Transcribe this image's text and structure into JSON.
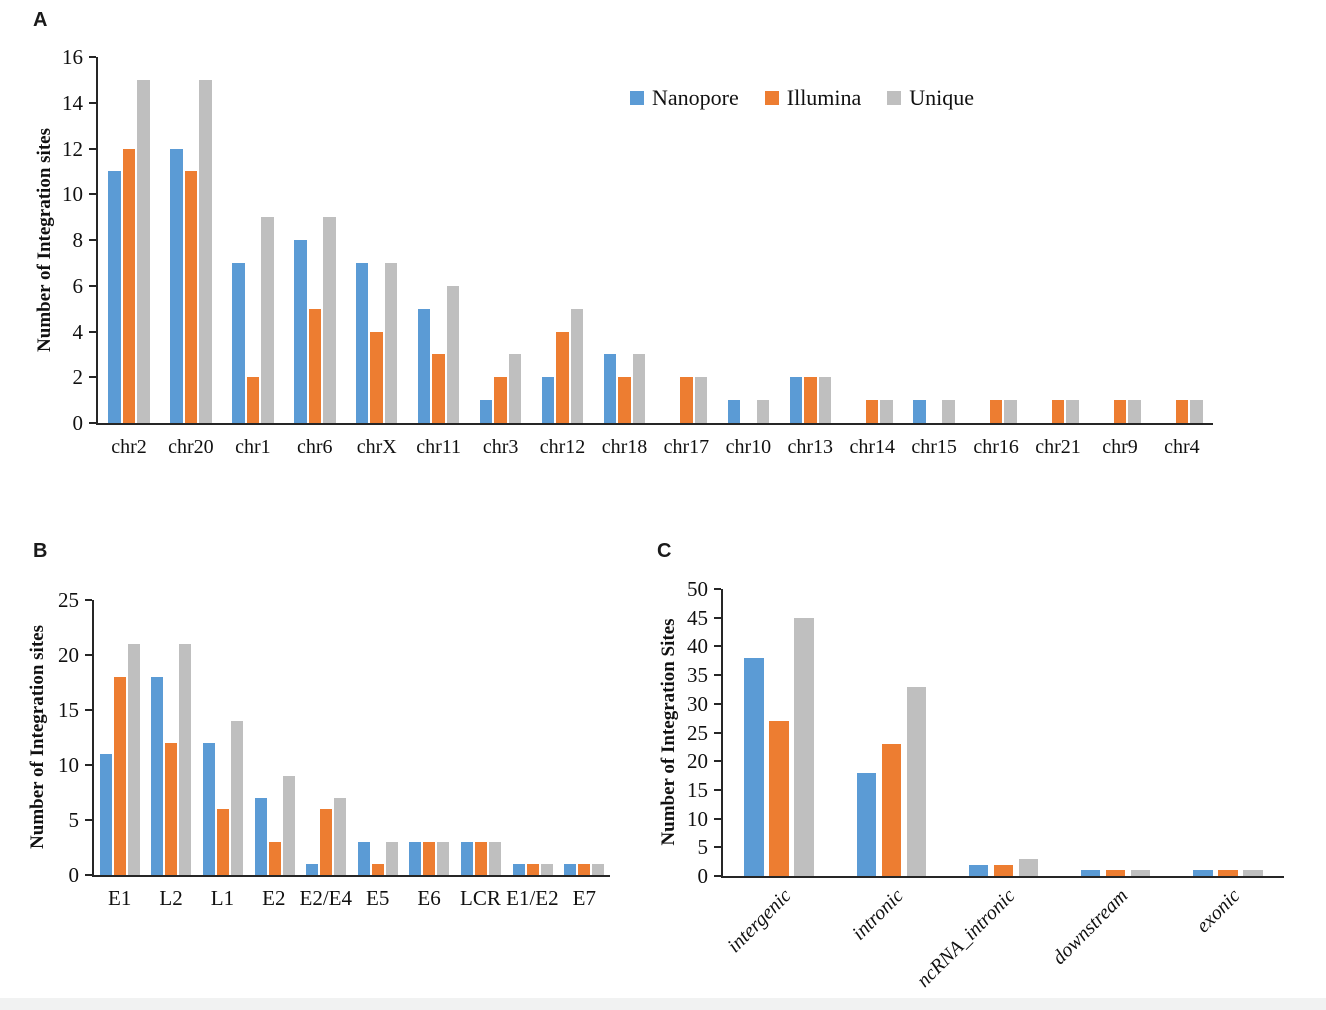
{
  "figure": {
    "panels": [
      {
        "letter": "A"
      },
      {
        "letter": "B"
      },
      {
        "letter": "C"
      }
    ]
  },
  "legend": {
    "items": [
      {
        "label": "Nanopore",
        "color": "#5B9BD5"
      },
      {
        "label": "Illumina",
        "color": "#ED7D31"
      },
      {
        "label": "Unique",
        "color": "#BFBFBF"
      }
    ]
  },
  "colors": {
    "axis": "#262626",
    "background": "#ffffff",
    "nanopore": "#5B9BD5",
    "illumina": "#ED7D31",
    "unique": "#BFBFBF"
  },
  "chart_data": [
    {
      "type": "bar",
      "panel": "A",
      "title": "",
      "xlabel": "",
      "ylabel": "Number of Integration sites",
      "ylim": [
        0,
        16
      ],
      "ytick_step": 2,
      "grid": false,
      "legend_position": "top-right",
      "categories": [
        "chr2",
        "chr20",
        "chr1",
        "chr6",
        "chrX",
        "chr11",
        "chr3",
        "chr12",
        "chr18",
        "chr17",
        "chr10",
        "chr13",
        "chr14",
        "chr15",
        "chr16",
        "chr21",
        "chr9",
        "chr4"
      ],
      "series": [
        {
          "name": "Nanopore",
          "color": "#5B9BD5",
          "values": [
            11,
            12,
            7,
            8,
            7,
            5,
            1,
            2,
            3,
            0,
            1,
            2,
            0,
            1,
            0,
            0,
            0,
            0
          ]
        },
        {
          "name": "Illumina",
          "color": "#ED7D31",
          "values": [
            12,
            11,
            2,
            5,
            4,
            3,
            2,
            4,
            2,
            2,
            0,
            2,
            1,
            0,
            1,
            1,
            1,
            1
          ]
        },
        {
          "name": "Unique",
          "color": "#BFBFBF",
          "values": [
            15,
            15,
            9,
            9,
            7,
            6,
            3,
            5,
            3,
            2,
            1,
            2,
            1,
            1,
            1,
            1,
            1,
            1
          ]
        }
      ]
    },
    {
      "type": "bar",
      "panel": "B",
      "title": "",
      "xlabel": "",
      "ylabel": "Number of Integration sites",
      "ylim": [
        0,
        25
      ],
      "ytick_step": 5,
      "grid": false,
      "categories": [
        "E1",
        "L2",
        "L1",
        "E2",
        "E2/E4",
        "E5",
        "E6",
        "LCR",
        "E1/E2",
        "E7"
      ],
      "series": [
        {
          "name": "Nanopore",
          "color": "#5B9BD5",
          "values": [
            11,
            18,
            12,
            7,
            1,
            3,
            3,
            3,
            1,
            1
          ]
        },
        {
          "name": "Illumina",
          "color": "#ED7D31",
          "values": [
            18,
            12,
            6,
            3,
            6,
            1,
            3,
            3,
            1,
            1
          ]
        },
        {
          "name": "Unique",
          "color": "#BFBFBF",
          "values": [
            21,
            21,
            14,
            9,
            7,
            3,
            3,
            3,
            1,
            1
          ]
        }
      ]
    },
    {
      "type": "bar",
      "panel": "C",
      "title": "",
      "xlabel": "",
      "ylabel": "Number of Integration Sites",
      "ylim": [
        0,
        50
      ],
      "ytick_step": 5,
      "grid": false,
      "x_label_style": "italic-rotated-45",
      "categories": [
        "intergenic",
        "intronic",
        "ncRNA_intronic",
        "downstream",
        "exonic"
      ],
      "series": [
        {
          "name": "Nanopore",
          "color": "#5B9BD5",
          "values": [
            38,
            18,
            2,
            1,
            1
          ]
        },
        {
          "name": "Illumina",
          "color": "#ED7D31",
          "values": [
            27,
            23,
            2,
            1,
            1
          ]
        },
        {
          "name": "Unique",
          "color": "#BFBFBF",
          "values": [
            45,
            33,
            3,
            1,
            1
          ]
        }
      ]
    }
  ]
}
